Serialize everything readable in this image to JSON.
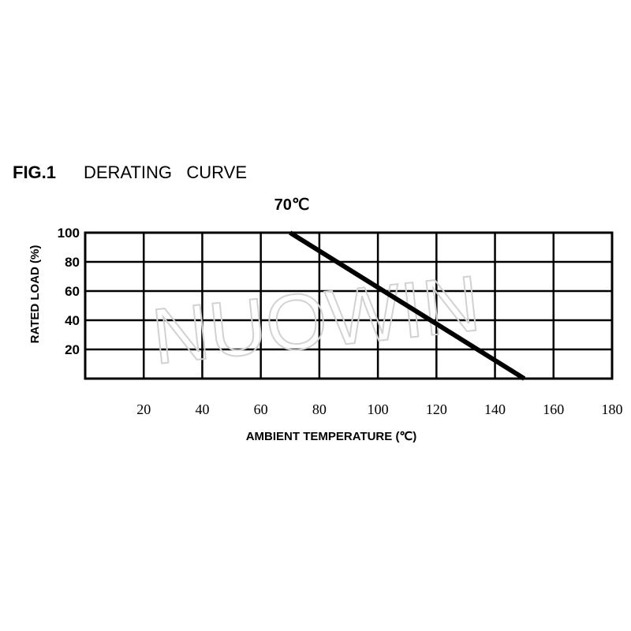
{
  "figure": {
    "label": "FIG.1",
    "title": "DERATING   CURVE"
  },
  "watermark": "NUOWIN",
  "chart_data": {
    "type": "line",
    "title": "DERATING CURVE",
    "xlabel": "AMBIENT TEMPERATURE (℃)",
    "ylabel": "RATED LOAD (%)",
    "xlim": [
      0,
      180
    ],
    "ylim": [
      0,
      100
    ],
    "x_ticks": [
      20,
      40,
      60,
      80,
      100,
      120,
      140,
      160,
      180
    ],
    "y_ticks": [
      20,
      40,
      60,
      80,
      100
    ],
    "grid": true,
    "annotation": {
      "text": "70℃",
      "x": 70
    },
    "series": [
      {
        "x": [
          70,
          150
        ],
        "y": [
          100,
          0
        ]
      }
    ]
  }
}
